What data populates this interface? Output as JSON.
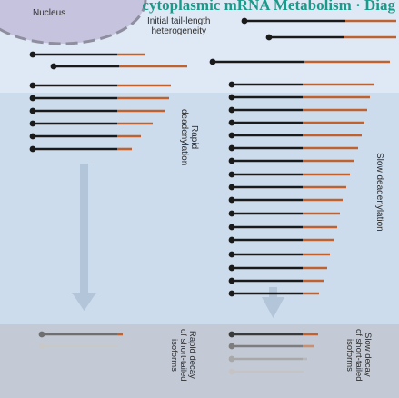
{
  "header": {
    "title": "cytoplasmic mRNA Metabolism · Diag"
  },
  "nucleus": {
    "label": "Nucleus"
  },
  "labels": {
    "initial": "Initial tail-length\nheterogeneity",
    "rapid": "Rapid\ndeadenylation",
    "slow": "Slow deadenylation",
    "rapid_decay": "Rapid decay\nof short-tailed\nisoforms",
    "slow_decay": "Slow decay\nof short-tailed\nisoforms"
  },
  "colors": {
    "top_band": "#dfe9f5",
    "middle_band": "#cddcec",
    "bottom_band": "#c3cad6",
    "body": "#1a1a1a",
    "tail": "#c0622f",
    "arrow": "#b3c5d9",
    "nucleus_fill": "#c6c3de",
    "nucleus_border": "#8e8e9e"
  }
}
